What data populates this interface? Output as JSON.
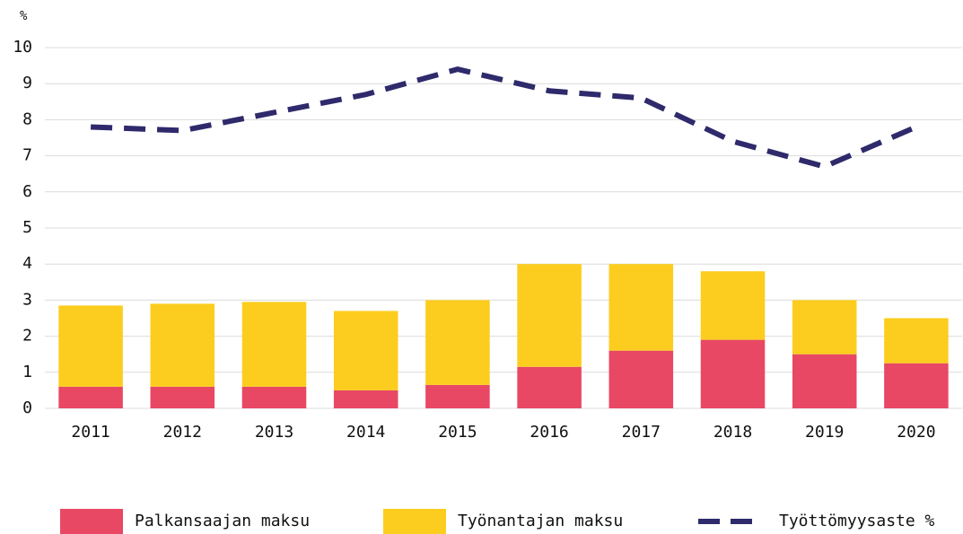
{
  "chart_data": {
    "type": "bar",
    "stacked": true,
    "y_label": "%",
    "categories": [
      "2011",
      "2012",
      "2013",
      "2014",
      "2015",
      "2016",
      "2017",
      "2018",
      "2019",
      "2020"
    ],
    "series": [
      {
        "name": "Palkansaajan maksu",
        "type": "bar",
        "color": "#e84864",
        "values": [
          0.6,
          0.6,
          0.6,
          0.5,
          0.65,
          1.15,
          1.6,
          1.9,
          1.5,
          1.25
        ]
      },
      {
        "name": "Työnantajan maksu",
        "type": "bar",
        "color": "#fccd1e",
        "values": [
          2.25,
          2.3,
          2.35,
          2.2,
          2.35,
          2.85,
          2.4,
          1.9,
          1.5,
          1.25
        ]
      },
      {
        "name": "Työttömyysaste %",
        "type": "line",
        "dashed": true,
        "color": "#2e2a6b",
        "values": [
          7.8,
          7.7,
          8.2,
          8.7,
          9.4,
          8.8,
          8.6,
          7.4,
          6.7,
          7.8
        ]
      }
    ],
    "ylim": [
      0,
      10
    ],
    "yticks": [
      0,
      1,
      2,
      3,
      4,
      5,
      6,
      7,
      8,
      9,
      10
    ],
    "grid": true,
    "legend": "bottom"
  }
}
